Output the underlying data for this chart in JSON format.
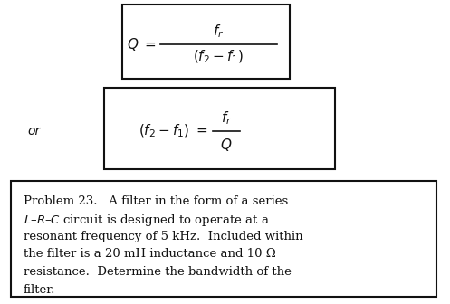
{
  "bg_color": "#ffffff",
  "box_color": "#ffffff",
  "box_edge_color": "#111111",
  "text_color": "#111111",
  "formula1_num": "$f_r$",
  "formula1_den": "$(f_2 - f_1)$",
  "formula1_lhs": "$Q\\ =$",
  "formula2_lhs": "$(f_2 - f_1) =$",
  "formula2_num": "$f_r$",
  "formula2_den": "$Q$",
  "or_text": "or",
  "problem_line1": "Problem 23.   A filter in the form of a series",
  "problem_line2": "$L$–$R$–$C$ circuit is designed to operate at a",
  "problem_line3": "resonant frequency of 5 kHz.  Included within",
  "problem_line4": "the filter is a 20 mH inductance and 10 Ω",
  "problem_line5": "resistance.  Determine the bandwidth of the",
  "problem_line6": "filter.",
  "font_size_formula": 11,
  "font_size_or": 10,
  "font_size_problem": 9.5,
  "lw": 1.5
}
